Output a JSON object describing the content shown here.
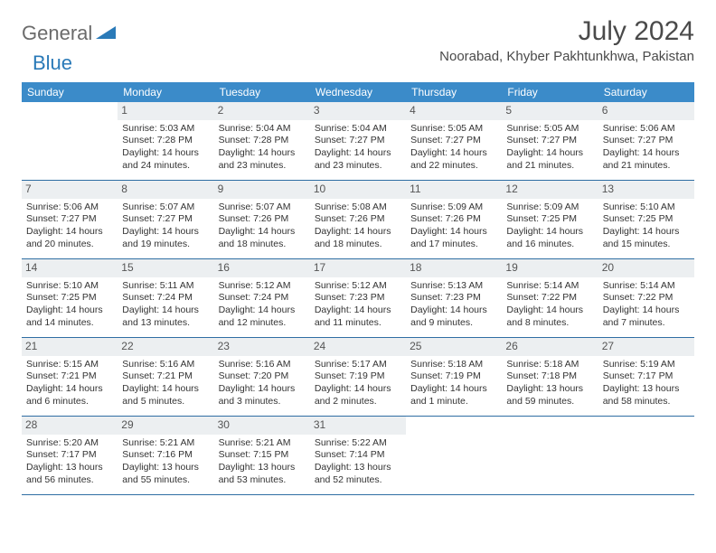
{
  "brand": {
    "part1": "General",
    "part2": "Blue"
  },
  "title": "July 2024",
  "location": "Noorabad, Khyber Pakhtunkhwa, Pakistan",
  "colors": {
    "header_bg": "#3b8bc9",
    "header_text": "#ffffff",
    "daynum_bg": "#eceff1",
    "border": "#2f6ea3",
    "brand_gray": "#6b6b6b",
    "brand_blue": "#2a7ab8"
  },
  "weekdays": [
    "Sunday",
    "Monday",
    "Tuesday",
    "Wednesday",
    "Thursday",
    "Friday",
    "Saturday"
  ],
  "weeks": [
    [
      {
        "n": "",
        "lines": []
      },
      {
        "n": "1",
        "lines": [
          "Sunrise: 5:03 AM",
          "Sunset: 7:28 PM",
          "Daylight: 14 hours",
          "and 24 minutes."
        ]
      },
      {
        "n": "2",
        "lines": [
          "Sunrise: 5:04 AM",
          "Sunset: 7:28 PM",
          "Daylight: 14 hours",
          "and 23 minutes."
        ]
      },
      {
        "n": "3",
        "lines": [
          "Sunrise: 5:04 AM",
          "Sunset: 7:27 PM",
          "Daylight: 14 hours",
          "and 23 minutes."
        ]
      },
      {
        "n": "4",
        "lines": [
          "Sunrise: 5:05 AM",
          "Sunset: 7:27 PM",
          "Daylight: 14 hours",
          "and 22 minutes."
        ]
      },
      {
        "n": "5",
        "lines": [
          "Sunrise: 5:05 AM",
          "Sunset: 7:27 PM",
          "Daylight: 14 hours",
          "and 21 minutes."
        ]
      },
      {
        "n": "6",
        "lines": [
          "Sunrise: 5:06 AM",
          "Sunset: 7:27 PM",
          "Daylight: 14 hours",
          "and 21 minutes."
        ]
      }
    ],
    [
      {
        "n": "7",
        "lines": [
          "Sunrise: 5:06 AM",
          "Sunset: 7:27 PM",
          "Daylight: 14 hours",
          "and 20 minutes."
        ]
      },
      {
        "n": "8",
        "lines": [
          "Sunrise: 5:07 AM",
          "Sunset: 7:27 PM",
          "Daylight: 14 hours",
          "and 19 minutes."
        ]
      },
      {
        "n": "9",
        "lines": [
          "Sunrise: 5:07 AM",
          "Sunset: 7:26 PM",
          "Daylight: 14 hours",
          "and 18 minutes."
        ]
      },
      {
        "n": "10",
        "lines": [
          "Sunrise: 5:08 AM",
          "Sunset: 7:26 PM",
          "Daylight: 14 hours",
          "and 18 minutes."
        ]
      },
      {
        "n": "11",
        "lines": [
          "Sunrise: 5:09 AM",
          "Sunset: 7:26 PM",
          "Daylight: 14 hours",
          "and 17 minutes."
        ]
      },
      {
        "n": "12",
        "lines": [
          "Sunrise: 5:09 AM",
          "Sunset: 7:25 PM",
          "Daylight: 14 hours",
          "and 16 minutes."
        ]
      },
      {
        "n": "13",
        "lines": [
          "Sunrise: 5:10 AM",
          "Sunset: 7:25 PM",
          "Daylight: 14 hours",
          "and 15 minutes."
        ]
      }
    ],
    [
      {
        "n": "14",
        "lines": [
          "Sunrise: 5:10 AM",
          "Sunset: 7:25 PM",
          "Daylight: 14 hours",
          "and 14 minutes."
        ]
      },
      {
        "n": "15",
        "lines": [
          "Sunrise: 5:11 AM",
          "Sunset: 7:24 PM",
          "Daylight: 14 hours",
          "and 13 minutes."
        ]
      },
      {
        "n": "16",
        "lines": [
          "Sunrise: 5:12 AM",
          "Sunset: 7:24 PM",
          "Daylight: 14 hours",
          "and 12 minutes."
        ]
      },
      {
        "n": "17",
        "lines": [
          "Sunrise: 5:12 AM",
          "Sunset: 7:23 PM",
          "Daylight: 14 hours",
          "and 11 minutes."
        ]
      },
      {
        "n": "18",
        "lines": [
          "Sunrise: 5:13 AM",
          "Sunset: 7:23 PM",
          "Daylight: 14 hours",
          "and 9 minutes."
        ]
      },
      {
        "n": "19",
        "lines": [
          "Sunrise: 5:14 AM",
          "Sunset: 7:22 PM",
          "Daylight: 14 hours",
          "and 8 minutes."
        ]
      },
      {
        "n": "20",
        "lines": [
          "Sunrise: 5:14 AM",
          "Sunset: 7:22 PM",
          "Daylight: 14 hours",
          "and 7 minutes."
        ]
      }
    ],
    [
      {
        "n": "21",
        "lines": [
          "Sunrise: 5:15 AM",
          "Sunset: 7:21 PM",
          "Daylight: 14 hours",
          "and 6 minutes."
        ]
      },
      {
        "n": "22",
        "lines": [
          "Sunrise: 5:16 AM",
          "Sunset: 7:21 PM",
          "Daylight: 14 hours",
          "and 5 minutes."
        ]
      },
      {
        "n": "23",
        "lines": [
          "Sunrise: 5:16 AM",
          "Sunset: 7:20 PM",
          "Daylight: 14 hours",
          "and 3 minutes."
        ]
      },
      {
        "n": "24",
        "lines": [
          "Sunrise: 5:17 AM",
          "Sunset: 7:19 PM",
          "Daylight: 14 hours",
          "and 2 minutes."
        ]
      },
      {
        "n": "25",
        "lines": [
          "Sunrise: 5:18 AM",
          "Sunset: 7:19 PM",
          "Daylight: 14 hours",
          "and 1 minute."
        ]
      },
      {
        "n": "26",
        "lines": [
          "Sunrise: 5:18 AM",
          "Sunset: 7:18 PM",
          "Daylight: 13 hours",
          "and 59 minutes."
        ]
      },
      {
        "n": "27",
        "lines": [
          "Sunrise: 5:19 AM",
          "Sunset: 7:17 PM",
          "Daylight: 13 hours",
          "and 58 minutes."
        ]
      }
    ],
    [
      {
        "n": "28",
        "lines": [
          "Sunrise: 5:20 AM",
          "Sunset: 7:17 PM",
          "Daylight: 13 hours",
          "and 56 minutes."
        ]
      },
      {
        "n": "29",
        "lines": [
          "Sunrise: 5:21 AM",
          "Sunset: 7:16 PM",
          "Daylight: 13 hours",
          "and 55 minutes."
        ]
      },
      {
        "n": "30",
        "lines": [
          "Sunrise: 5:21 AM",
          "Sunset: 7:15 PM",
          "Daylight: 13 hours",
          "and 53 minutes."
        ]
      },
      {
        "n": "31",
        "lines": [
          "Sunrise: 5:22 AM",
          "Sunset: 7:14 PM",
          "Daylight: 13 hours",
          "and 52 minutes."
        ]
      },
      {
        "n": "",
        "lines": []
      },
      {
        "n": "",
        "lines": []
      },
      {
        "n": "",
        "lines": []
      }
    ]
  ]
}
